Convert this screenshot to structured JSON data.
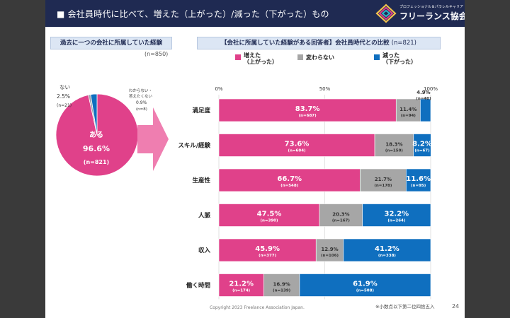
{
  "header": {
    "title": "■ 会社員時代に比べて、増えた（上がった）/減った（下がった）もの",
    "logo_tagline": "プロフェッショナル＆パラレルキャリア",
    "logo_name": "フリーランス協会"
  },
  "left_section": {
    "heading": "過去に一つの会社に所属していた経験",
    "n_label": "(n=850)"
  },
  "right_section": {
    "heading": "【会社に所属していた経験がある回答者】会社員時代との比較",
    "n_label": "(n=821)"
  },
  "pie": {
    "slices": [
      {
        "label": "ある",
        "percent": "96.6%",
        "n": "(n=821)",
        "value": 96.6,
        "color": "#e0418a"
      },
      {
        "label": "ない",
        "percent": "2.5%",
        "n": "(n=21)",
        "value": 2.5,
        "color": "#0f6fbf"
      },
      {
        "label_line1": "わからない・",
        "label_line2": "答えたくない",
        "percent": "0.9%",
        "n": "(n=8)",
        "value": 0.9,
        "color": "#9aa3ad"
      }
    ]
  },
  "legend": [
    {
      "line1": "増えた",
      "line2": "（上がった）",
      "color": "#e0418a"
    },
    {
      "line1": "変わらない",
      "line2": "",
      "color": "#a6a6a6"
    },
    {
      "line1": "減った",
      "line2": "（下がった）",
      "color": "#0f6fbf"
    }
  ],
  "chart_data": {
    "type": "bar",
    "orientation": "horizontal-stacked-100",
    "categories": [
      "満足度",
      "スキル/経験",
      "生産性",
      "人脈",
      "収入",
      "働く時間"
    ],
    "series": [
      {
        "name": "増えた（上がった）",
        "values": [
          83.7,
          73.6,
          66.7,
          47.5,
          45.9,
          21.2
        ],
        "labels": [
          "83.7%",
          "73.6%",
          "66.7%",
          "47.5%",
          "45.9%",
          "21.2%"
        ],
        "n": [
          "(n=687)",
          "(n=604)",
          "(n=548)",
          "(n=390)",
          "(n=377)",
          "(n=174)"
        ],
        "color": "#e0418a"
      },
      {
        "name": "変わらない",
        "values": [
          11.4,
          18.3,
          21.7,
          20.3,
          12.9,
          16.9
        ],
        "labels": [
          "11.4%",
          "18.3%",
          "21.7%",
          "20.3%",
          "12.9%",
          "16.9%"
        ],
        "n": [
          "(n=94)",
          "(n=150)",
          "(n=178)",
          "(n=167)",
          "(n=106)",
          "(n=139)"
        ],
        "color": "#a6a6a6"
      },
      {
        "name": "減った（下がった）",
        "values": [
          4.9,
          8.2,
          11.6,
          32.2,
          41.2,
          61.9
        ],
        "labels": [
          "4.9%",
          "8.2%",
          "11.6%",
          "32.2%",
          "41.2%",
          "61.9%"
        ],
        "n": [
          "(n=40)",
          "(n=67)",
          "(n=95)",
          "(n=264)",
          "(n=338)",
          "(n=508)"
        ],
        "color": "#0f6fbf"
      }
    ],
    "xlim": [
      0,
      100
    ],
    "ticks": [
      "0%",
      "50%",
      "100%"
    ]
  },
  "footer": {
    "copyright": "Copyright 2023 Freelance Association Japan.",
    "note": "※小数点以下第二位四捨五入",
    "page": "24"
  }
}
